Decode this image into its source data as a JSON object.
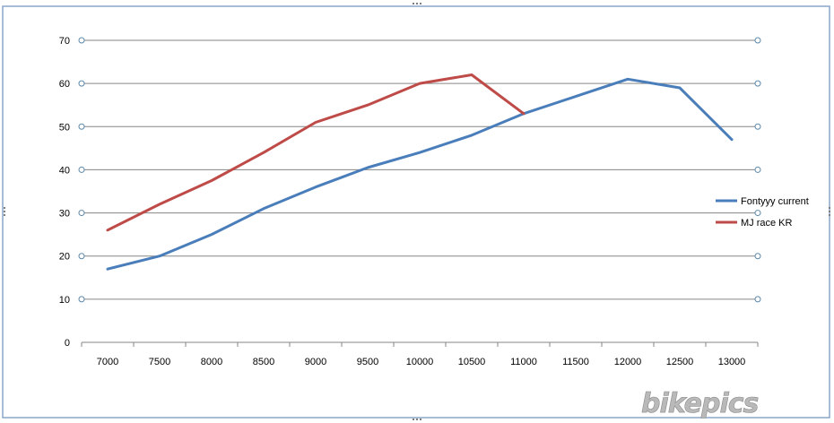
{
  "chart_data": {
    "type": "line",
    "categories": [
      "7000",
      "7500",
      "8000",
      "8500",
      "9000",
      "9500",
      "10000",
      "10500",
      "11000",
      "11500",
      "12000",
      "12500",
      "13000"
    ],
    "series": [
      {
        "name": "Fontyyy current",
        "color": "#4a7ebb",
        "values": [
          17,
          20,
          25,
          31,
          36,
          40.5,
          44,
          48,
          53,
          57,
          61,
          59,
          47
        ]
      },
      {
        "name": "MJ race KR",
        "color": "#be4b48",
        "values": [
          26,
          32,
          37.5,
          44,
          51,
          55,
          60,
          62,
          53,
          null,
          null,
          null,
          null
        ]
      }
    ],
    "yticks": [
      "0",
      "10",
      "20",
      "30",
      "40",
      "50",
      "60",
      "70"
    ],
    "ylim": [
      0,
      70
    ],
    "grid": true,
    "legend": "right"
  },
  "watermark": "bikepics",
  "colors": {
    "border": "#8aa5c8",
    "grid": "#868686",
    "handle": "#5b87a8"
  }
}
